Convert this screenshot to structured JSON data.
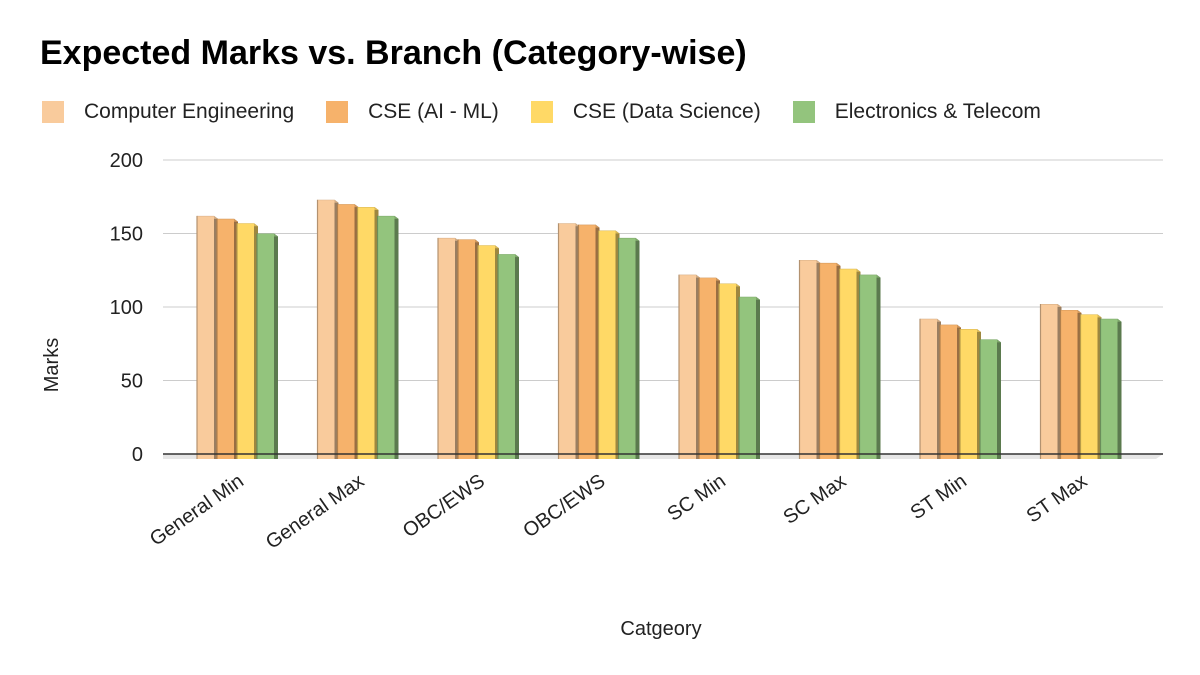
{
  "chart_data": {
    "type": "bar",
    "title": "Expected Marks vs. Branch (Category-wise)",
    "xlabel": "Catgeory",
    "ylabel": "Marks",
    "ylim": [
      0,
      200
    ],
    "yticks": [
      0,
      50,
      100,
      150,
      200
    ],
    "grid": true,
    "legend_position": "top",
    "categories": [
      "General Min",
      "General Max",
      "OBC/EWS",
      "OBC/EWS",
      "SC Min",
      "SC Max",
      "ST Min",
      "ST Max"
    ],
    "series": [
      {
        "name": "Computer Engineering",
        "color": "#f9cb9c",
        "values": [
          162,
          173,
          147,
          157,
          122,
          132,
          92,
          102
        ]
      },
      {
        "name": "CSE (AI - ML)",
        "color": "#f6b26b",
        "values": [
          160,
          170,
          146,
          156,
          120,
          130,
          88,
          98
        ]
      },
      {
        "name": "CSE (Data Science)",
        "color": "#ffd966",
        "values": [
          157,
          168,
          142,
          152,
          116,
          126,
          85,
          95
        ]
      },
      {
        "name": "Electronics & Telecom",
        "color": "#93c47d",
        "values": [
          150,
          162,
          136,
          147,
          107,
          122,
          78,
          92
        ]
      }
    ]
  }
}
